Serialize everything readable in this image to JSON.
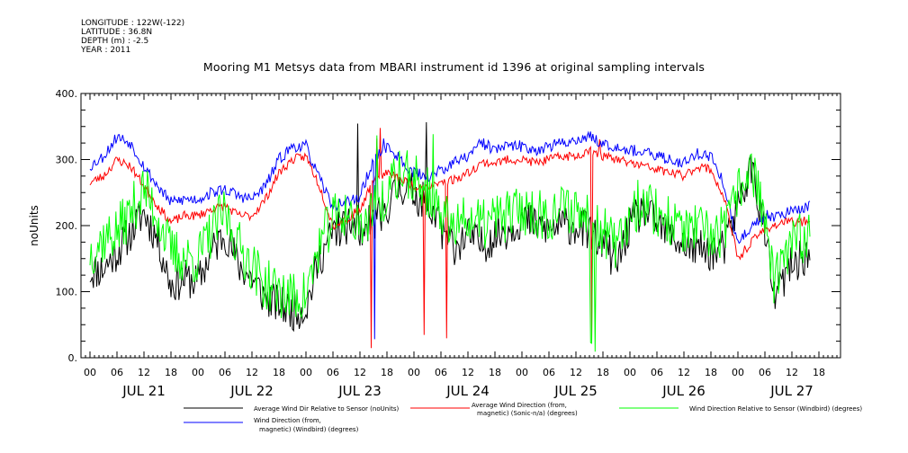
{
  "meta": {
    "longitude": "LONGITUDE : 122W(-122)",
    "latitude": "LATITUDE : 36.8N",
    "depth": "DEPTH (m) : -2.5",
    "year": "YEAR : 2011"
  },
  "chart_data": {
    "type": "line",
    "title": "Mooring M1 Metsys data from MBARI instrument id 1396 at original sampling intervals",
    "ylabel": "noUnits",
    "xlabel": "",
    "ylim": [
      0,
      400
    ],
    "yticks": [
      "0.",
      "100.",
      "200.",
      "300.",
      "400."
    ],
    "xlim_hours": [
      0,
      168
    ],
    "hour_ticks": [
      "00",
      "06",
      "12",
      "18",
      "00",
      "06",
      "12",
      "18",
      "00",
      "06",
      "12",
      "18",
      "00",
      "06",
      "12",
      "18",
      "00",
      "06",
      "12",
      "18",
      "00",
      "06",
      "12",
      "18",
      "00",
      "06",
      "12",
      "18"
    ],
    "day_labels": [
      "JUL 21",
      "JUL 22",
      "JUL 23",
      "JUL 24",
      "JUL 25",
      "JUL 26",
      "JUL 27"
    ],
    "grid": false,
    "legend_position": "bottom",
    "series": [
      {
        "name": "Average Wind Dir Relative to Sensor (noUnits)",
        "color": "#000000",
        "keypoints": [
          [
            0,
            130
          ],
          [
            3,
            135
          ],
          [
            6,
            160
          ],
          [
            9,
            190
          ],
          [
            12,
            220
          ],
          [
            15,
            180
          ],
          [
            18,
            110
          ],
          [
            21,
            120
          ],
          [
            24,
            115
          ],
          [
            27,
            160
          ],
          [
            30,
            190
          ],
          [
            33,
            140
          ],
          [
            36,
            120
          ],
          [
            39,
            90
          ],
          [
            42,
            80
          ],
          [
            45,
            70
          ],
          [
            48,
            75
          ],
          [
            51,
            150
          ],
          [
            54,
            190
          ],
          [
            57,
            200
          ],
          [
            60,
            195
          ],
          [
            63,
            205
          ],
          [
            66,
            230
          ],
          [
            69,
            260
          ],
          [
            72,
            250
          ],
          [
            75,
            230
          ],
          [
            78,
            195
          ],
          [
            81,
            170
          ],
          [
            84,
            185
          ],
          [
            87,
            170
          ],
          [
            90,
            185
          ],
          [
            93,
            195
          ],
          [
            96,
            210
          ],
          [
            99,
            200
          ],
          [
            102,
            195
          ],
          [
            105,
            200
          ],
          [
            108,
            200
          ],
          [
            111,
            190
          ],
          [
            114,
            175
          ],
          [
            117,
            140
          ],
          [
            120,
            200
          ],
          [
            123,
            225
          ],
          [
            126,
            200
          ],
          [
            129,
            185
          ],
          [
            132,
            170
          ],
          [
            135,
            165
          ],
          [
            138,
            160
          ],
          [
            141,
            165
          ],
          [
            144,
            230
          ],
          [
            147,
            290
          ],
          [
            150,
            190
          ],
          [
            152,
            90
          ],
          [
            154,
            115
          ],
          [
            156,
            140
          ],
          [
            158,
            150
          ],
          [
            160,
            155
          ]
        ],
        "noise": 30,
        "seed": 11
      },
      {
        "name": "Average Wind Direction (from, magnetic) (Sonic-n/a) (degrees)",
        "color": "#ff0000",
        "keypoints": [
          [
            0,
            265
          ],
          [
            3,
            275
          ],
          [
            6,
            300
          ],
          [
            9,
            290
          ],
          [
            12,
            260
          ],
          [
            15,
            230
          ],
          [
            18,
            205
          ],
          [
            21,
            215
          ],
          [
            24,
            215
          ],
          [
            27,
            225
          ],
          [
            30,
            230
          ],
          [
            33,
            215
          ],
          [
            36,
            215
          ],
          [
            39,
            240
          ],
          [
            42,
            280
          ],
          [
            45,
            300
          ],
          [
            48,
            305
          ],
          [
            51,
            260
          ],
          [
            54,
            200
          ],
          [
            57,
            210
          ],
          [
            60,
            225
          ],
          [
            63,
            270
          ],
          [
            66,
            280
          ],
          [
            69,
            270
          ],
          [
            72,
            260
          ],
          [
            75,
            260
          ],
          [
            78,
            265
          ],
          [
            81,
            270
          ],
          [
            84,
            280
          ],
          [
            87,
            295
          ],
          [
            90,
            295
          ],
          [
            93,
            300
          ],
          [
            96,
            300
          ],
          [
            99,
            295
          ],
          [
            102,
            300
          ],
          [
            105,
            305
          ],
          [
            108,
            305
          ],
          [
            111,
            315
          ],
          [
            114,
            305
          ],
          [
            117,
            300
          ],
          [
            120,
            295
          ],
          [
            123,
            290
          ],
          [
            126,
            285
          ],
          [
            129,
            280
          ],
          [
            132,
            275
          ],
          [
            135,
            290
          ],
          [
            138,
            285
          ],
          [
            141,
            240
          ],
          [
            144,
            150
          ],
          [
            147,
            175
          ],
          [
            150,
            195
          ],
          [
            152,
            200
          ],
          [
            154,
            205
          ],
          [
            156,
            205
          ],
          [
            158,
            205
          ],
          [
            160,
            210
          ]
        ],
        "noise": 7,
        "seed": 23
      },
      {
        "name": "Wind Direction Relative to Sensor (Windbird) (degrees)",
        "color": "#00ff00",
        "keypoints": [
          [
            0,
            160
          ],
          [
            3,
            180
          ],
          [
            6,
            190
          ],
          [
            9,
            220
          ],
          [
            12,
            255
          ],
          [
            15,
            215
          ],
          [
            18,
            160
          ],
          [
            21,
            150
          ],
          [
            24,
            150
          ],
          [
            27,
            190
          ],
          [
            30,
            220
          ],
          [
            33,
            170
          ],
          [
            36,
            140
          ],
          [
            39,
            110
          ],
          [
            42,
            100
          ],
          [
            45,
            90
          ],
          [
            48,
            95
          ],
          [
            51,
            170
          ],
          [
            54,
            210
          ],
          [
            57,
            220
          ],
          [
            60,
            210
          ],
          [
            63,
            220
          ],
          [
            66,
            250
          ],
          [
            69,
            280
          ],
          [
            72,
            270
          ],
          [
            75,
            250
          ],
          [
            78,
            215
          ],
          [
            81,
            195
          ],
          [
            84,
            210
          ],
          [
            87,
            200
          ],
          [
            90,
            210
          ],
          [
            93,
            215
          ],
          [
            96,
            225
          ],
          [
            99,
            220
          ],
          [
            102,
            215
          ],
          [
            105,
            225
          ],
          [
            108,
            225
          ],
          [
            111,
            210
          ],
          [
            114,
            195
          ],
          [
            117,
            160
          ],
          [
            120,
            220
          ],
          [
            123,
            240
          ],
          [
            126,
            220
          ],
          [
            129,
            205
          ],
          [
            132,
            195
          ],
          [
            135,
            190
          ],
          [
            138,
            185
          ],
          [
            141,
            190
          ],
          [
            144,
            250
          ],
          [
            147,
            295
          ],
          [
            150,
            210
          ],
          [
            152,
            110
          ],
          [
            154,
            140
          ],
          [
            156,
            170
          ],
          [
            158,
            180
          ],
          [
            160,
            185
          ]
        ],
        "noise": 40,
        "seed": 37
      },
      {
        "name": "Wind Direction (from, magnetic) (Windbird) (degrees)",
        "color": "#0000ff",
        "keypoints": [
          [
            0,
            290
          ],
          [
            3,
            305
          ],
          [
            6,
            335
          ],
          [
            9,
            325
          ],
          [
            12,
            290
          ],
          [
            15,
            260
          ],
          [
            18,
            235
          ],
          [
            21,
            240
          ],
          [
            24,
            240
          ],
          [
            27,
            250
          ],
          [
            30,
            255
          ],
          [
            33,
            245
          ],
          [
            36,
            240
          ],
          [
            39,
            260
          ],
          [
            42,
            300
          ],
          [
            45,
            320
          ],
          [
            48,
            320
          ],
          [
            51,
            270
          ],
          [
            54,
            230
          ],
          [
            57,
            235
          ],
          [
            60,
            245
          ],
          [
            63,
            300
          ],
          [
            66,
            320
          ],
          [
            69,
            300
          ],
          [
            72,
            280
          ],
          [
            75,
            275
          ],
          [
            78,
            285
          ],
          [
            81,
            295
          ],
          [
            84,
            305
          ],
          [
            87,
            325
          ],
          [
            90,
            315
          ],
          [
            93,
            320
          ],
          [
            96,
            320
          ],
          [
            99,
            315
          ],
          [
            102,
            320
          ],
          [
            105,
            325
          ],
          [
            108,
            330
          ],
          [
            111,
            335
          ],
          [
            114,
            325
          ],
          [
            117,
            320
          ],
          [
            120,
            315
          ],
          [
            123,
            310
          ],
          [
            126,
            305
          ],
          [
            129,
            300
          ],
          [
            132,
            295
          ],
          [
            135,
            310
          ],
          [
            138,
            305
          ],
          [
            141,
            260
          ],
          [
            144,
            170
          ],
          [
            147,
            200
          ],
          [
            150,
            215
          ],
          [
            152,
            215
          ],
          [
            154,
            220
          ],
          [
            156,
            220
          ],
          [
            158,
            225
          ],
          [
            160,
            230
          ]
        ],
        "noise": 9,
        "seed": 53
      }
    ],
    "legend": [
      "Average Wind Dir Relative to Sensor (noUnits)",
      "Average Wind Direction (from,",
      "magnetic) (Sonic-n/a) (degrees)",
      "Wind Direction Relative to Sensor (Windbird) (degrees)",
      "Wind Direction (from,",
      "magnetic) (Windbird) (degrees)"
    ]
  }
}
